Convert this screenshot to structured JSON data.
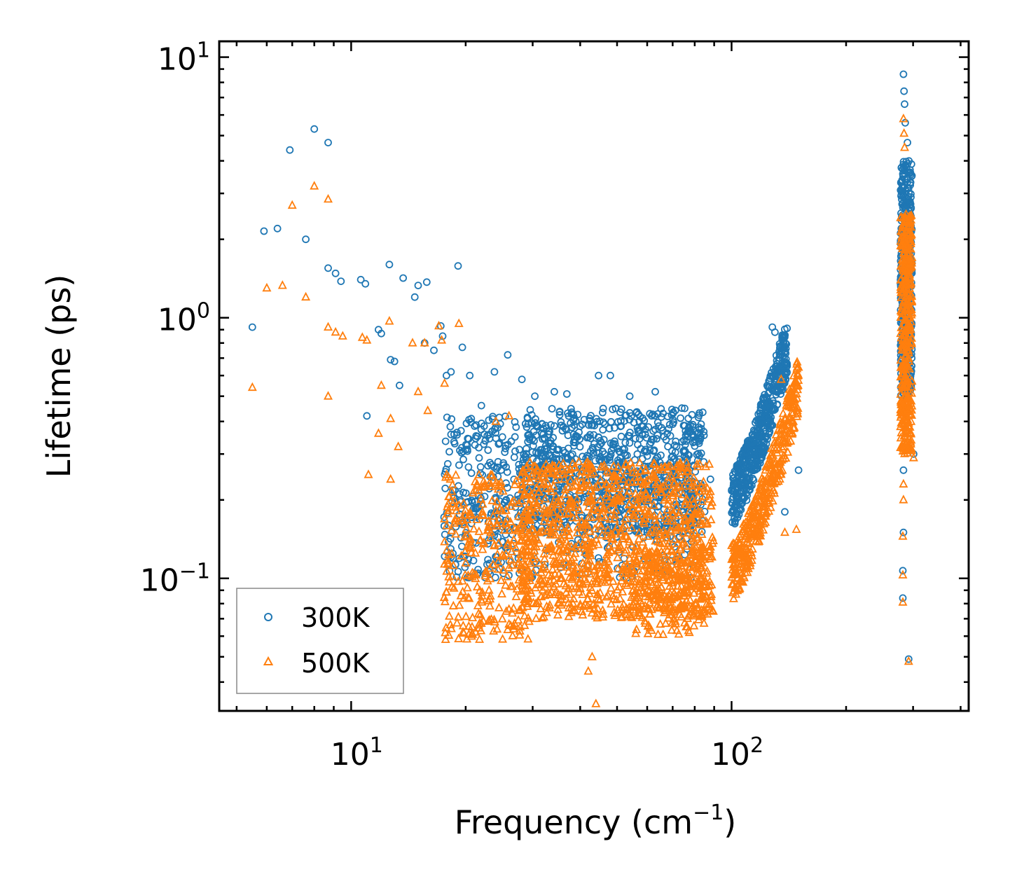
{
  "chart_data": {
    "type": "scatter",
    "xscale": "log",
    "yscale": "log",
    "xlim": [
      4.5,
      420
    ],
    "ylim": [
      0.031,
      11.5
    ],
    "xlabel": "Frequency (cm",
    "xlabel_sup": "−1",
    "xlabel_tail": ")",
    "ylabel": "Lifetime (ps)",
    "x_ticks": [
      {
        "value": 10,
        "base": "10",
        "exp": "1"
      },
      {
        "value": 100,
        "base": "10",
        "exp": "2"
      }
    ],
    "y_ticks": [
      {
        "value": 0.1,
        "base": "10",
        "exp": "−1"
      },
      {
        "value": 1,
        "base": "10",
        "exp": "0"
      },
      {
        "value": 10,
        "base": "10",
        "exp": "1"
      }
    ],
    "legend": {
      "placement": "lower-left",
      "entries": [
        "300K",
        "500K"
      ]
    },
    "series": [
      {
        "name": "300K",
        "marker": "circle",
        "color": "#1f77b4",
        "points": [
          [
            5.5,
            0.92
          ],
          [
            5.9,
            2.15
          ],
          [
            6.4,
            2.2
          ],
          [
            6.9,
            4.4
          ],
          [
            7.6,
            2.0
          ],
          [
            8.0,
            5.3
          ],
          [
            8.7,
            4.7
          ],
          [
            8.7,
            1.55
          ],
          [
            9.1,
            1.48
          ],
          [
            9.4,
            1.38
          ],
          [
            10.6,
            1.4
          ],
          [
            10.9,
            1.35
          ],
          [
            11.0,
            0.42
          ],
          [
            11.8,
            0.9
          ],
          [
            12.0,
            0.87
          ],
          [
            12.6,
            1.6
          ],
          [
            12.7,
            0.69
          ],
          [
            13.0,
            0.68
          ],
          [
            13.4,
            0.55
          ],
          [
            13.7,
            1.42
          ],
          [
            14.7,
            1.2
          ],
          [
            15.0,
            1.33
          ],
          [
            15.8,
            1.37
          ],
          [
            15.6,
            0.8
          ],
          [
            16.5,
            0.75
          ],
          [
            17.2,
            0.93
          ],
          [
            17.4,
            0.85
          ],
          [
            17.8,
            0.6
          ],
          [
            18.3,
            0.62
          ],
          [
            19.1,
            1.58
          ],
          [
            19.6,
            0.77
          ],
          [
            20.5,
            0.6
          ],
          [
            22.0,
            0.46
          ],
          [
            23.8,
            0.62
          ],
          [
            25.8,
            0.72
          ],
          [
            28.1,
            0.58
          ],
          [
            30.4,
            0.5
          ],
          [
            34.2,
            0.52
          ],
          [
            36.9,
            0.51
          ],
          [
            44.7,
            0.6
          ],
          [
            48.0,
            0.6
          ],
          [
            54.0,
            0.5
          ],
          [
            63.0,
            0.52
          ],
          [
            74.0,
            0.45
          ],
          [
            82.0,
            0.38
          ],
          [
            88.0,
            0.24
          ],
          [
            128.0,
            0.92
          ],
          [
            130.0,
            0.88
          ],
          [
            138.0,
            0.18
          ],
          [
            150.0,
            0.26
          ],
          [
            283.0,
            8.6
          ],
          [
            284.0,
            7.4
          ],
          [
            285.0,
            6.6
          ],
          [
            286.0,
            5.6
          ],
          [
            290.0,
            4.7
          ],
          [
            283.0,
            0.26
          ],
          [
            283.0,
            0.15
          ],
          [
            282.0,
            0.107
          ],
          [
            282.0,
            0.084
          ],
          [
            292.0,
            0.049
          ],
          [
            301.0,
            0.3
          ]
        ],
        "clusters": [
          {
            "x_range": [
              17.5,
              28
            ],
            "y_range": [
              0.1,
              0.42
            ],
            "n": 260
          },
          {
            "x_range": [
              28,
              85
            ],
            "y_range": [
              0.15,
              0.45
            ],
            "n": 800
          },
          {
            "x_range": [
              28,
              80
            ],
            "y_range": [
              0.1,
              0.3
            ],
            "n": 250
          },
          {
            "x_range": [
              100,
              140
            ],
            "y_peak": [
              0.2,
              0.78
            ],
            "n": 500
          },
          {
            "x_range": [
              278,
              298
            ],
            "y_range": [
              0.5,
              4.0
            ],
            "n": 420
          }
        ]
      },
      {
        "name": "500K",
        "marker": "triangle",
        "color": "#ff7f0e",
        "points": [
          [
            5.5,
            0.54
          ],
          [
            6.0,
            1.3
          ],
          [
            6.6,
            1.33
          ],
          [
            7.0,
            2.7
          ],
          [
            7.6,
            1.2
          ],
          [
            8.0,
            3.2
          ],
          [
            8.7,
            2.85
          ],
          [
            8.7,
            0.92
          ],
          [
            8.7,
            0.5
          ],
          [
            9.1,
            0.88
          ],
          [
            9.5,
            0.85
          ],
          [
            10.7,
            0.84
          ],
          [
            11.0,
            0.82
          ],
          [
            11.1,
            0.25
          ],
          [
            11.8,
            0.36
          ],
          [
            12.0,
            0.55
          ],
          [
            12.6,
            0.97
          ],
          [
            12.7,
            0.41
          ],
          [
            12.7,
            0.24
          ],
          [
            13.3,
            0.32
          ],
          [
            14.5,
            0.8
          ],
          [
            15.0,
            0.52
          ],
          [
            15.6,
            0.8
          ],
          [
            15.9,
            0.44
          ],
          [
            17.0,
            0.93
          ],
          [
            17.3,
            0.82
          ],
          [
            17.6,
            0.56
          ],
          [
            19.2,
            0.95
          ],
          [
            24.0,
            0.4
          ],
          [
            26.0,
            0.42
          ],
          [
            44.0,
            0.033
          ],
          [
            43.0,
            0.05
          ],
          [
            42.0,
            0.044
          ],
          [
            135.0,
            0.58
          ],
          [
            138.0,
            0.15
          ],
          [
            148.0,
            0.154
          ],
          [
            283.0,
            5.8
          ],
          [
            284.0,
            5.1
          ],
          [
            285.0,
            4.5
          ],
          [
            283.0,
            0.23
          ],
          [
            283.0,
            0.2
          ],
          [
            282.0,
            0.145
          ],
          [
            282.0,
            0.103
          ],
          [
            282.0,
            0.081
          ],
          [
            292.0,
            0.048
          ],
          [
            301.0,
            0.29
          ]
        ],
        "clusters": [
          {
            "x_range": [
              17.5,
              30
            ],
            "y_range": [
              0.058,
              0.25
            ],
            "n": 320
          },
          {
            "x_range": [
              28,
              90
            ],
            "y_range": [
              0.07,
              0.28
            ],
            "n": 1100
          },
          {
            "x_range": [
              55,
              85
            ],
            "y_range": [
              0.06,
              0.13
            ],
            "n": 200
          },
          {
            "x_range": [
              100,
              150
            ],
            "y_peak": [
              0.105,
              0.55
            ],
            "n": 420
          },
          {
            "x_range": [
              278,
              298
            ],
            "y_range": [
              0.3,
              2.5
            ],
            "n": 380
          }
        ]
      }
    ]
  }
}
